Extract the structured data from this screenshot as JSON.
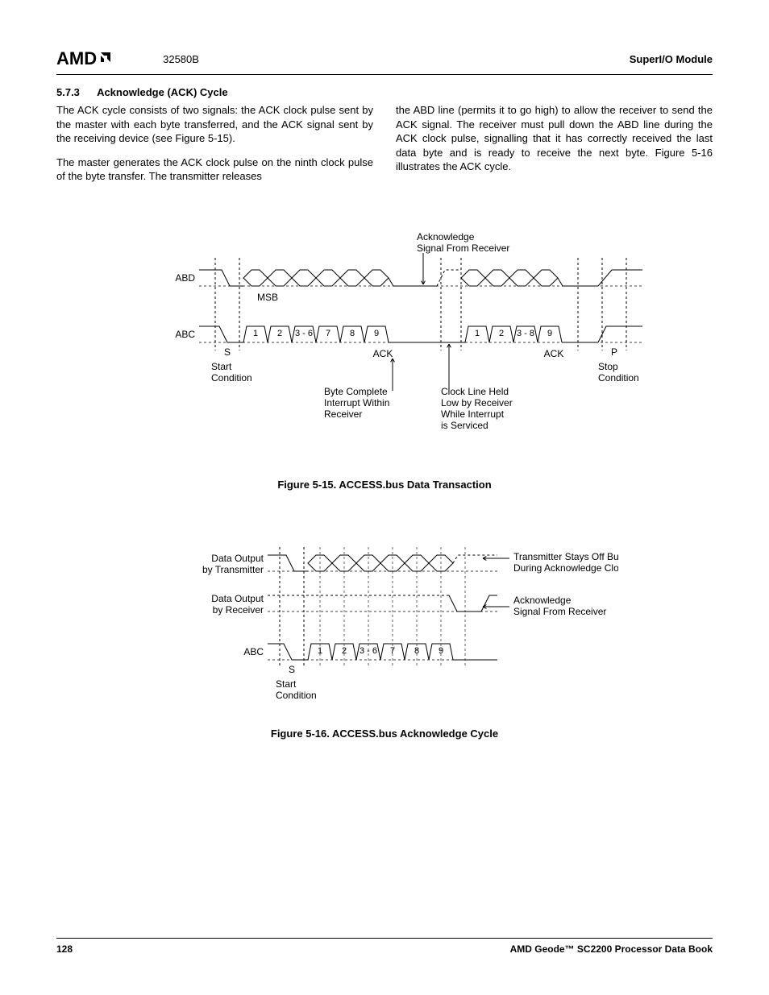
{
  "header": {
    "logo_text": "AMD",
    "doc_number": "32580B",
    "module_title": "SuperI/O Module"
  },
  "section": {
    "number": "5.7.3",
    "title": "Acknowledge (ACK) Cycle"
  },
  "paragraphs": {
    "p1": "The ACK cycle consists of two signals: the ACK clock pulse sent by the master with each byte transferred, and the ACK signal sent by the receiving device (see Figure 5-15).",
    "p2": "The master generates the ACK clock pulse on the ninth clock pulse of the byte transfer. The transmitter releases",
    "p3": "the ABD line (permits it to go high) to allow the receiver to send the ACK signal. The receiver must pull down the ABD line during the ACK clock pulse, signalling that it has correctly received the last data byte and is ready to receive the next byte. Figure 5-16 illustrates the ACK cycle."
  },
  "figure15": {
    "caption": "Figure 5-15.  ACCESS.bus Data Transaction",
    "labels": {
      "abd": "ABD",
      "abc": "ABC",
      "msb": "MSB",
      "s": "S",
      "p": "P",
      "ack": "ACK",
      "start_condition": "Start\nCondition",
      "stop_condition": "Stop\nCondition",
      "ack_signal": "Acknowledge\nSignal From Receiver",
      "byte_complete": "Byte Complete\nInterrupt Within\nReceiver",
      "clock_held": "Clock Line Held\nLow by Receiver\nWhile Interrupt\nis Serviced"
    },
    "clock_numbers_1": [
      "1",
      "2",
      "3 - 6",
      "7",
      "8",
      "9"
    ],
    "clock_numbers_2": [
      "1",
      "2",
      "3 - 8",
      "9"
    ],
    "colors": {
      "stroke": "#000000",
      "dash": "3,3",
      "bg": "#ffffff"
    },
    "fontsize": 12
  },
  "figure16": {
    "caption": "Figure 5-16.  ACCESS.bus Acknowledge Cycle",
    "labels": {
      "data_out_tx": "Data Output\nby Transmitter",
      "data_out_rx": "Data Output\nby Receiver",
      "abc": "ABC",
      "s": "S",
      "start_condition": "Start\nCondition",
      "tx_stays_off": "Transmitter Stays Off Bus\nDuring Acknowledge Clock",
      "ack_signal": "Acknowledge\nSignal From Receiver"
    },
    "clock_numbers": [
      "1",
      "2",
      "3 - 6",
      "7",
      "8",
      "9"
    ],
    "colors": {
      "stroke": "#000000",
      "dash": "3,3"
    },
    "fontsize": 12
  },
  "footer": {
    "page": "128",
    "book": "AMD Geode™ SC2200  Processor Data Book"
  }
}
